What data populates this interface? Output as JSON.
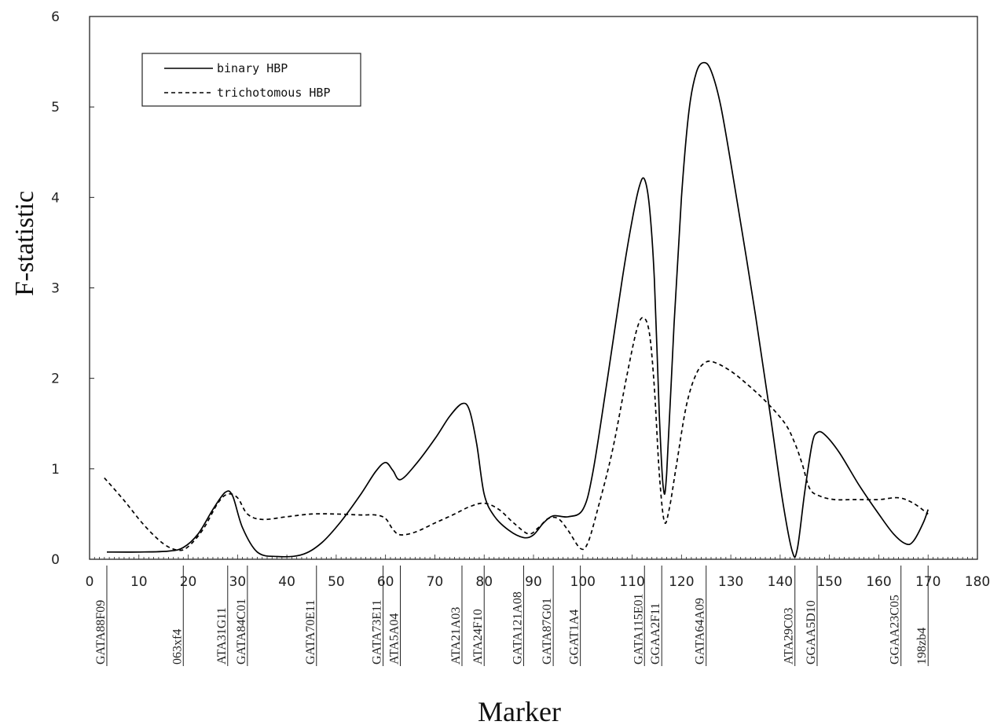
{
  "chart_data": {
    "type": "line",
    "title": "",
    "xlabel": "Marker",
    "ylabel": "F-statistic",
    "xlim": [
      0,
      180
    ],
    "ylim": [
      0,
      6
    ],
    "x_ticks": [
      0,
      10,
      20,
      30,
      40,
      50,
      60,
      70,
      80,
      90,
      100,
      110,
      120,
      130,
      140,
      150,
      160,
      170,
      180
    ],
    "y_ticks": [
      0,
      1,
      2,
      3,
      4,
      5,
      6
    ],
    "grid": false,
    "legend_position": "top-left",
    "markers": [
      {
        "name": "GATA88F09",
        "x": 3.5
      },
      {
        "name": "063xf4",
        "x": 19
      },
      {
        "name": "ATA31G11",
        "x": 28
      },
      {
        "name": "GATA84C01",
        "x": 32
      },
      {
        "name": "GATA70E11",
        "x": 46
      },
      {
        "name": "GATA73E11",
        "x": 59.5
      },
      {
        "name": "ATA5A04",
        "x": 63
      },
      {
        "name": "ATA21A03",
        "x": 75.5
      },
      {
        "name": "ATA24F10",
        "x": 80
      },
      {
        "name": "GATA121A08",
        "x": 88
      },
      {
        "name": "GATA87G01",
        "x": 94
      },
      {
        "name": "GGAT1A4",
        "x": 99.5
      },
      {
        "name": "GATA115E01",
        "x": 112.5
      },
      {
        "name": "GGAA2F11",
        "x": 116
      },
      {
        "name": "GATA64A09",
        "x": 125
      },
      {
        "name": "ATA29C03",
        "x": 143
      },
      {
        "name": "GGAA5D10",
        "x": 147.5
      },
      {
        "name": "GGAA23C05",
        "x": 164.5
      },
      {
        "name": "198zb4",
        "x": 170
      }
    ],
    "series": [
      {
        "name": "binary HBP",
        "style": "solid",
        "color": "#000000",
        "points": [
          [
            3.5,
            0.08
          ],
          [
            10,
            0.08
          ],
          [
            16,
            0.09
          ],
          [
            19,
            0.13
          ],
          [
            22,
            0.28
          ],
          [
            25,
            0.55
          ],
          [
            27.5,
            0.74
          ],
          [
            29,
            0.7
          ],
          [
            31,
            0.35
          ],
          [
            34,
            0.08
          ],
          [
            38,
            0.03
          ],
          [
            43,
            0.05
          ],
          [
            47,
            0.18
          ],
          [
            51,
            0.42
          ],
          [
            55,
            0.72
          ],
          [
            58,
            0.97
          ],
          [
            60,
            1.07
          ],
          [
            61.5,
            0.98
          ],
          [
            63,
            0.88
          ],
          [
            66,
            1.04
          ],
          [
            70,
            1.33
          ],
          [
            73,
            1.58
          ],
          [
            75.5,
            1.72
          ],
          [
            77,
            1.65
          ],
          [
            78.5,
            1.27
          ],
          [
            80,
            0.72
          ],
          [
            82,
            0.48
          ],
          [
            85,
            0.32
          ],
          [
            88,
            0.24
          ],
          [
            90,
            0.27
          ],
          [
            92,
            0.4
          ],
          [
            94,
            0.48
          ],
          [
            97,
            0.47
          ],
          [
            100,
            0.55
          ],
          [
            102,
            0.95
          ],
          [
            105,
            2.0
          ],
          [
            108,
            3.1
          ],
          [
            110,
            3.75
          ],
          [
            111.5,
            4.13
          ],
          [
            112.5,
            4.2
          ],
          [
            113.5,
            3.9
          ],
          [
            114.5,
            3.1
          ],
          [
            115.5,
            1.6
          ],
          [
            116.3,
            0.8
          ],
          [
            117,
            0.95
          ],
          [
            118.5,
            2.6
          ],
          [
            120,
            4.0
          ],
          [
            121.5,
            4.95
          ],
          [
            123,
            5.38
          ],
          [
            124.5,
            5.49
          ],
          [
            126,
            5.4
          ],
          [
            128,
            5.0
          ],
          [
            131,
            4.05
          ],
          [
            135,
            2.7
          ],
          [
            138,
            1.6
          ],
          [
            140.5,
            0.65
          ],
          [
            142.5,
            0.08
          ],
          [
            143.5,
            0.12
          ],
          [
            145,
            0.75
          ],
          [
            146.5,
            1.28
          ],
          [
            147.5,
            1.4
          ],
          [
            149,
            1.38
          ],
          [
            152,
            1.18
          ],
          [
            156,
            0.82
          ],
          [
            160,
            0.5
          ],
          [
            163,
            0.28
          ],
          [
            165.5,
            0.17
          ],
          [
            167,
            0.2
          ],
          [
            169,
            0.4
          ],
          [
            170,
            0.55
          ]
        ]
      },
      {
        "name": "trichotomous HBP",
        "style": "dashed",
        "color": "#000000",
        "points": [
          [
            3,
            0.9
          ],
          [
            7,
            0.65
          ],
          [
            11,
            0.38
          ],
          [
            15,
            0.17
          ],
          [
            18,
            0.1
          ],
          [
            20,
            0.14
          ],
          [
            23,
            0.33
          ],
          [
            26,
            0.62
          ],
          [
            28,
            0.72
          ],
          [
            30,
            0.68
          ],
          [
            32,
            0.5
          ],
          [
            35,
            0.44
          ],
          [
            40,
            0.47
          ],
          [
            45,
            0.5
          ],
          [
            50,
            0.5
          ],
          [
            55,
            0.49
          ],
          [
            58,
            0.49
          ],
          [
            60,
            0.45
          ],
          [
            61.5,
            0.33
          ],
          [
            63,
            0.27
          ],
          [
            66,
            0.3
          ],
          [
            70,
            0.4
          ],
          [
            74,
            0.5
          ],
          [
            77,
            0.58
          ],
          [
            80,
            0.62
          ],
          [
            83,
            0.55
          ],
          [
            86,
            0.4
          ],
          [
            89,
            0.28
          ],
          [
            91,
            0.35
          ],
          [
            93,
            0.45
          ],
          [
            95,
            0.45
          ],
          [
            97,
            0.32
          ],
          [
            99.5,
            0.12
          ],
          [
            101,
            0.18
          ],
          [
            103,
            0.55
          ],
          [
            106,
            1.2
          ],
          [
            109,
            2.05
          ],
          [
            111,
            2.55
          ],
          [
            112.3,
            2.67
          ],
          [
            113.5,
            2.5
          ],
          [
            114.5,
            1.9
          ],
          [
            115.5,
            0.95
          ],
          [
            116.5,
            0.42
          ],
          [
            117.5,
            0.55
          ],
          [
            119,
            1.05
          ],
          [
            121,
            1.7
          ],
          [
            123,
            2.05
          ],
          [
            125,
            2.18
          ],
          [
            127,
            2.17
          ],
          [
            130,
            2.08
          ],
          [
            133,
            1.95
          ],
          [
            137,
            1.75
          ],
          [
            141,
            1.5
          ],
          [
            143,
            1.28
          ],
          [
            144.5,
            1.05
          ],
          [
            146,
            0.78
          ],
          [
            148,
            0.7
          ],
          [
            151,
            0.66
          ],
          [
            155,
            0.66
          ],
          [
            160,
            0.66
          ],
          [
            164,
            0.68
          ],
          [
            167,
            0.62
          ],
          [
            170,
            0.5
          ]
        ]
      }
    ]
  }
}
